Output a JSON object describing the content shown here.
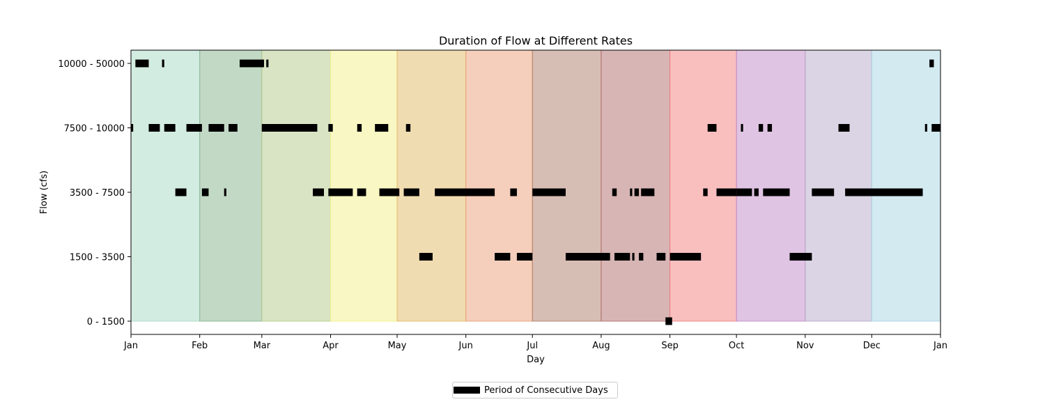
{
  "chart_data": {
    "type": "timeline",
    "title": "Duration of Flow at Different Rates",
    "xlabel": "Day",
    "ylabel": "Flow (cfs)",
    "x_tick_labels": [
      "Jan",
      "Feb",
      "Mar",
      "Apr",
      "May",
      "Jun",
      "Jul",
      "Aug",
      "Sep",
      "Oct",
      "Nov",
      "Dec",
      "Jan"
    ],
    "y_categories": [
      "0 - 1500",
      "1500 - 3500",
      "3500 - 7500",
      "7500 - 10000",
      "10000 - 50000"
    ],
    "legend": {
      "label": "Period of Consecutive Days",
      "placement": "bottom-center"
    },
    "month_colors": [
      "#a8d9c5",
      "#85b38e",
      "#b3c98b",
      "#f3f28a",
      "#e1b964",
      "#eb9f78",
      "#b07e6a",
      "#b06c6c",
      "#f37f7f",
      "#c18ac7",
      "#b7a9c9",
      "#a7d5e4"
    ],
    "month_band_opacity": 0.5,
    "bar_color": "#000000",
    "periods": {
      "10000 - 50000": [
        [
          2,
          8
        ],
        [
          14,
          15
        ],
        [
          49,
          60
        ],
        [
          61,
          62
        ],
        [
          360,
          362
        ]
      ],
      "7500 - 10000": [
        [
          0,
          1
        ],
        [
          8,
          13
        ],
        [
          15,
          20
        ],
        [
          25,
          32
        ],
        [
          35,
          42
        ],
        [
          44,
          48
        ],
        [
          59,
          84
        ],
        [
          89,
          91
        ],
        [
          102,
          104
        ],
        [
          110,
          116
        ],
        [
          124,
          126
        ],
        [
          260,
          264
        ],
        [
          275,
          276
        ],
        [
          283,
          285
        ],
        [
          287,
          289
        ],
        [
          319,
          324
        ],
        [
          358,
          359
        ],
        [
          361,
          365
        ]
      ],
      "3500 - 7500": [
        [
          20,
          25
        ],
        [
          32,
          35
        ],
        [
          42,
          43
        ],
        [
          82,
          87
        ],
        [
          89,
          100
        ],
        [
          102,
          106
        ],
        [
          112,
          121
        ],
        [
          123,
          130
        ],
        [
          137,
          164
        ],
        [
          171,
          174
        ],
        [
          181,
          196
        ],
        [
          217,
          219
        ],
        [
          225,
          226
        ],
        [
          227,
          229
        ],
        [
          230,
          236
        ],
        [
          258,
          260
        ],
        [
          264,
          273
        ],
        [
          273,
          280
        ],
        [
          281,
          283
        ],
        [
          285,
          297
        ],
        [
          307,
          317
        ],
        [
          322,
          357
        ]
      ],
      "1500 - 3500": [
        [
          130,
          136
        ],
        [
          164,
          171
        ],
        [
          174,
          181
        ],
        [
          196,
          216
        ],
        [
          218,
          225
        ],
        [
          226,
          227
        ],
        [
          229,
          231
        ],
        [
          237,
          241
        ],
        [
          243,
          257
        ],
        [
          297,
          307
        ]
      ],
      "0 - 1500": [
        [
          241,
          244
        ]
      ]
    }
  }
}
